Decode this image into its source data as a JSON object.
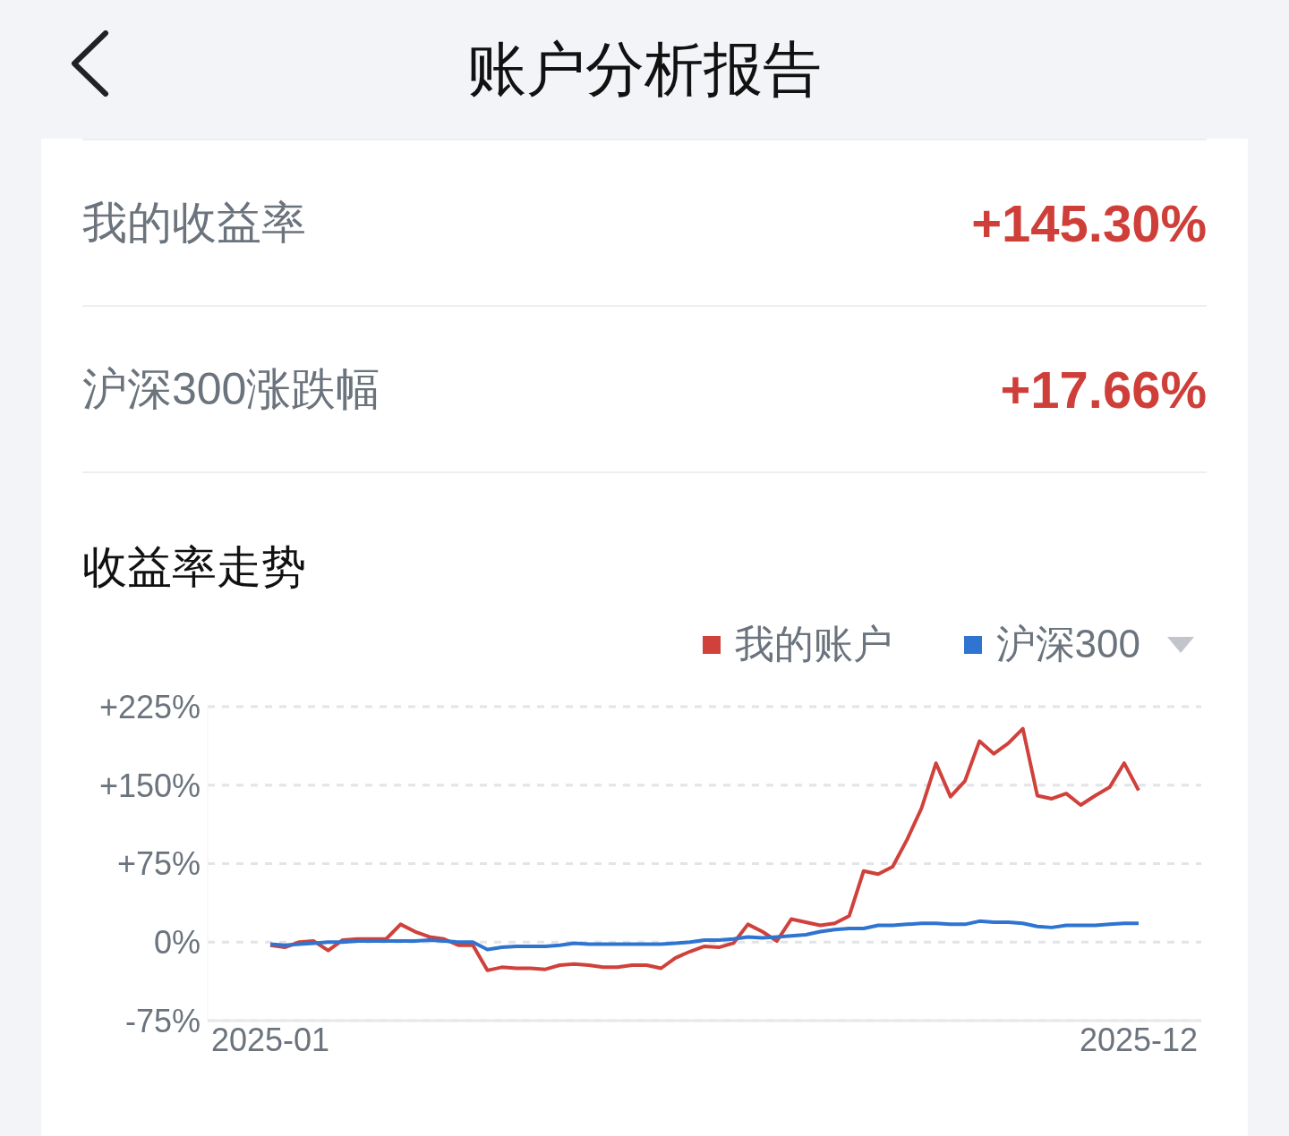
{
  "chart_data": {
    "type": "line",
    "title": "账户分析报告",
    "subtitle": "收益率走势",
    "annotations": [
      "我的收益率",
      "+145.30%",
      "沪深300涨跌幅",
      "+17.66%"
    ],
    "categories": [
      "2025-01",
      null,
      null,
      null,
      null,
      null,
      null,
      null,
      null,
      null,
      null,
      null,
      null,
      null,
      null,
      null,
      null,
      null,
      null,
      null,
      null,
      null,
      null,
      null,
      null,
      null,
      null,
      null,
      null,
      null,
      null,
      null,
      null,
      null,
      null,
      null,
      null,
      null,
      null,
      null,
      null,
      null,
      null,
      null,
      null,
      null,
      null,
      null,
      null,
      null,
      null,
      null,
      null,
      null,
      null,
      null,
      null,
      null,
      null,
      null,
      "2025-12"
    ],
    "series": [
      {
        "name": "我的账户",
        "color": "#d0413b",
        "values": [
          -3,
          -5,
          0,
          1,
          -8,
          2,
          3,
          3,
          3,
          17,
          10,
          5,
          3,
          -3,
          -3,
          -27,
          -24,
          -25,
          -25,
          -26,
          -22,
          -21,
          -22,
          -24,
          -24,
          -22,
          -22,
          -25,
          -15,
          -9,
          -4,
          -5,
          -1,
          17,
          10,
          1,
          22,
          19,
          16,
          18,
          25,
          68,
          65,
          72,
          98,
          128,
          171,
          139,
          154,
          192,
          180,
          190,
          204,
          140,
          137,
          142,
          131,
          140,
          148,
          171,
          145
        ]
      },
      {
        "name": "沪深300",
        "color": "#2f74d0",
        "values": [
          -2,
          -3,
          -2,
          -1,
          0,
          0,
          1,
          1,
          1,
          1,
          1,
          2,
          1,
          0,
          0,
          -7,
          -5,
          -4,
          -4,
          -4,
          -3,
          -1,
          -2,
          -2,
          -2,
          -2,
          -2,
          -2,
          -1,
          0,
          2,
          2,
          3,
          5,
          4,
          5,
          6,
          7,
          10,
          12,
          13,
          13,
          16,
          16,
          17,
          18,
          18,
          17,
          17,
          20,
          19,
          19,
          18,
          15,
          14,
          16,
          16,
          16,
          17,
          18,
          18
        ]
      }
    ],
    "ylim": [
      -75,
      225
    ],
    "yticks": [
      {
        "value": -75,
        "label": "-75%"
      },
      {
        "value": 0,
        "label": "0%"
      },
      {
        "value": 75,
        "label": "+75%"
      },
      {
        "value": 150,
        "label": "+150%"
      },
      {
        "value": 225,
        "label": "+225%"
      }
    ],
    "grid": "y",
    "legend": "top right",
    "marker": "none",
    "line_style": "solid"
  }
}
